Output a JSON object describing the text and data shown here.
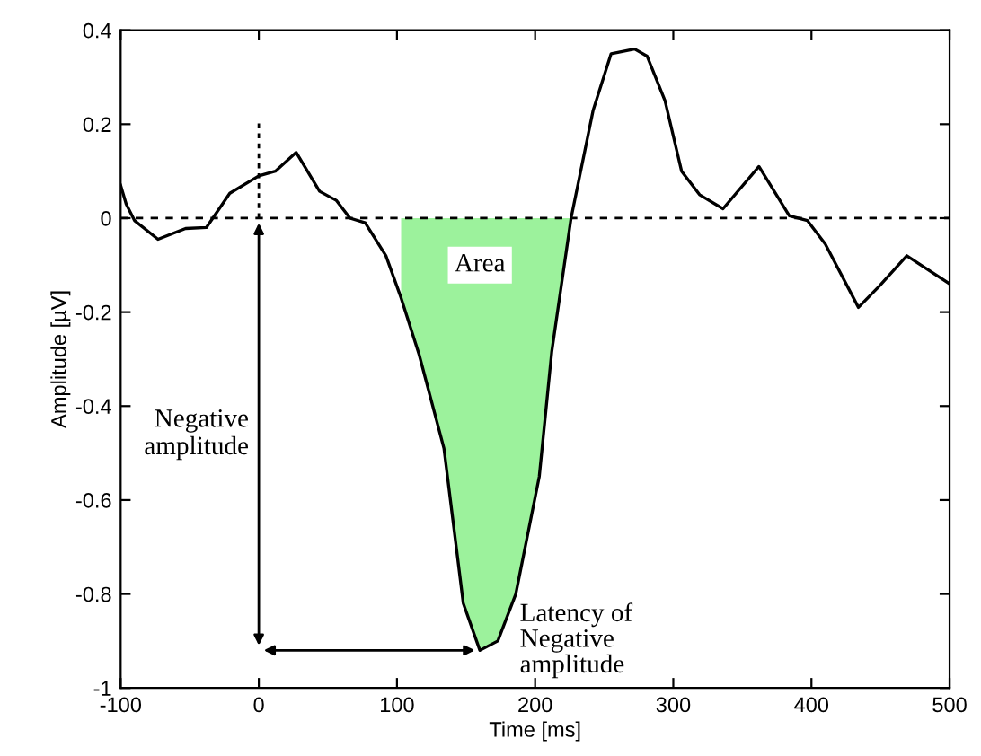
{
  "chart_data": {
    "type": "line",
    "xlabel": "Time [ms]",
    "ylabel": "Amplitude [µV]",
    "xlim": [
      -100,
      500
    ],
    "ylim": [
      -1,
      0.4
    ],
    "xticks": [
      -100,
      0,
      100,
      200,
      300,
      400,
      500
    ],
    "yticks": [
      -1,
      -0.8,
      -0.6,
      -0.4,
      -0.2,
      0,
      0.2,
      0.4
    ],
    "grid": false,
    "legend": false,
    "series": [
      {
        "color": "#000000",
        "x": [
          -100,
          -96,
          -90,
          -73,
          -53,
          -38,
          -21,
          0,
          12,
          27,
          44,
          56,
          66,
          77,
          92,
          103,
          116,
          134,
          148,
          160,
          173,
          186,
          203,
          212,
          226,
          242,
          255,
          272,
          281,
          294,
          306,
          319,
          336,
          362,
          384,
          397,
          410,
          434,
          449,
          469,
          500
        ],
        "values": [
          0.07,
          0.03,
          -0.005,
          -0.045,
          -0.022,
          -0.02,
          0.053,
          0.09,
          0.1,
          0.14,
          0.057,
          0.038,
          0,
          -0.01,
          -0.08,
          -0.17,
          -0.29,
          -0.49,
          -0.82,
          -0.92,
          -0.9,
          -0.8,
          -0.55,
          -0.285,
          0,
          0.23,
          0.35,
          0.36,
          0.345,
          0.25,
          0.1,
          0.05,
          0.02,
          0.11,
          0.005,
          -0.005,
          -0.055,
          -0.19,
          -0.145,
          -0.08,
          -0.14
        ]
      },
      {
        "type": "area",
        "color": "#9cf29c",
        "x": [
          103,
          116,
          134,
          148,
          160,
          173,
          186,
          203,
          212,
          226
        ],
        "values": [
          -0.17,
          -0.29,
          -0.49,
          -0.82,
          -0.92,
          -0.9,
          -0.8,
          -0.55,
          -0.285,
          0
        ]
      }
    ],
    "ref_lines": [
      {
        "axis": "y",
        "value": 0,
        "line_style": "dashed",
        "color": "#000000"
      },
      {
        "axis": "x",
        "value": 0,
        "line_style": "dotted",
        "color": "#000000"
      }
    ],
    "annotations": [
      "Negative\namplitude",
      {
        "text": "Latency of\nNegative\namplitude",
        "x": 160,
        "y": -0.92
      },
      {
        "text": "Area",
        "x": 160,
        "y": -0.1
      }
    ]
  }
}
